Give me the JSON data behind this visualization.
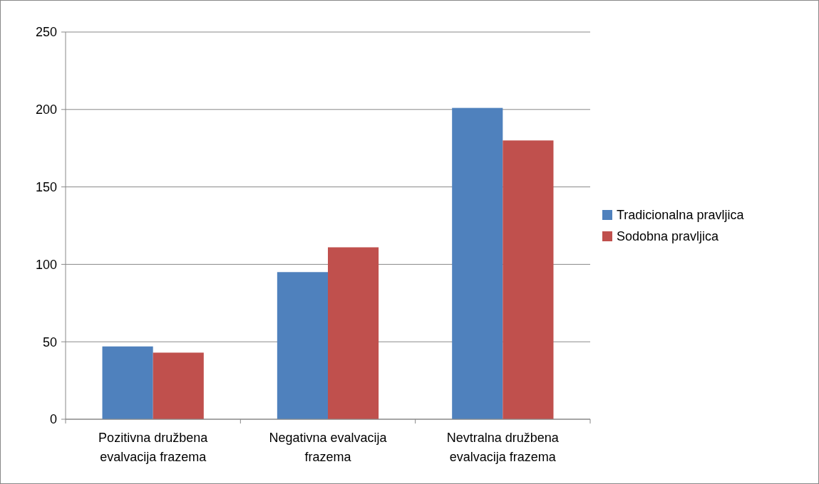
{
  "chart_data": {
    "type": "bar",
    "categories": [
      "Pozitivna družbena evalvacija frazema",
      "Negativna evalvacija frazema",
      "Nevtralna družbena evalvacija frazema"
    ],
    "series": [
      {
        "name": "Tradicionalna pravljica",
        "color": "#4f81bd",
        "values": [
          47,
          95,
          201
        ]
      },
      {
        "name": "Sodobna pravljica",
        "color": "#c0504d",
        "values": [
          43,
          111,
          180
        ]
      }
    ],
    "ylim": [
      0,
      250
    ],
    "yticks": [
      0,
      50,
      100,
      150,
      200,
      250
    ],
    "grid": "y",
    "legend": "right"
  }
}
